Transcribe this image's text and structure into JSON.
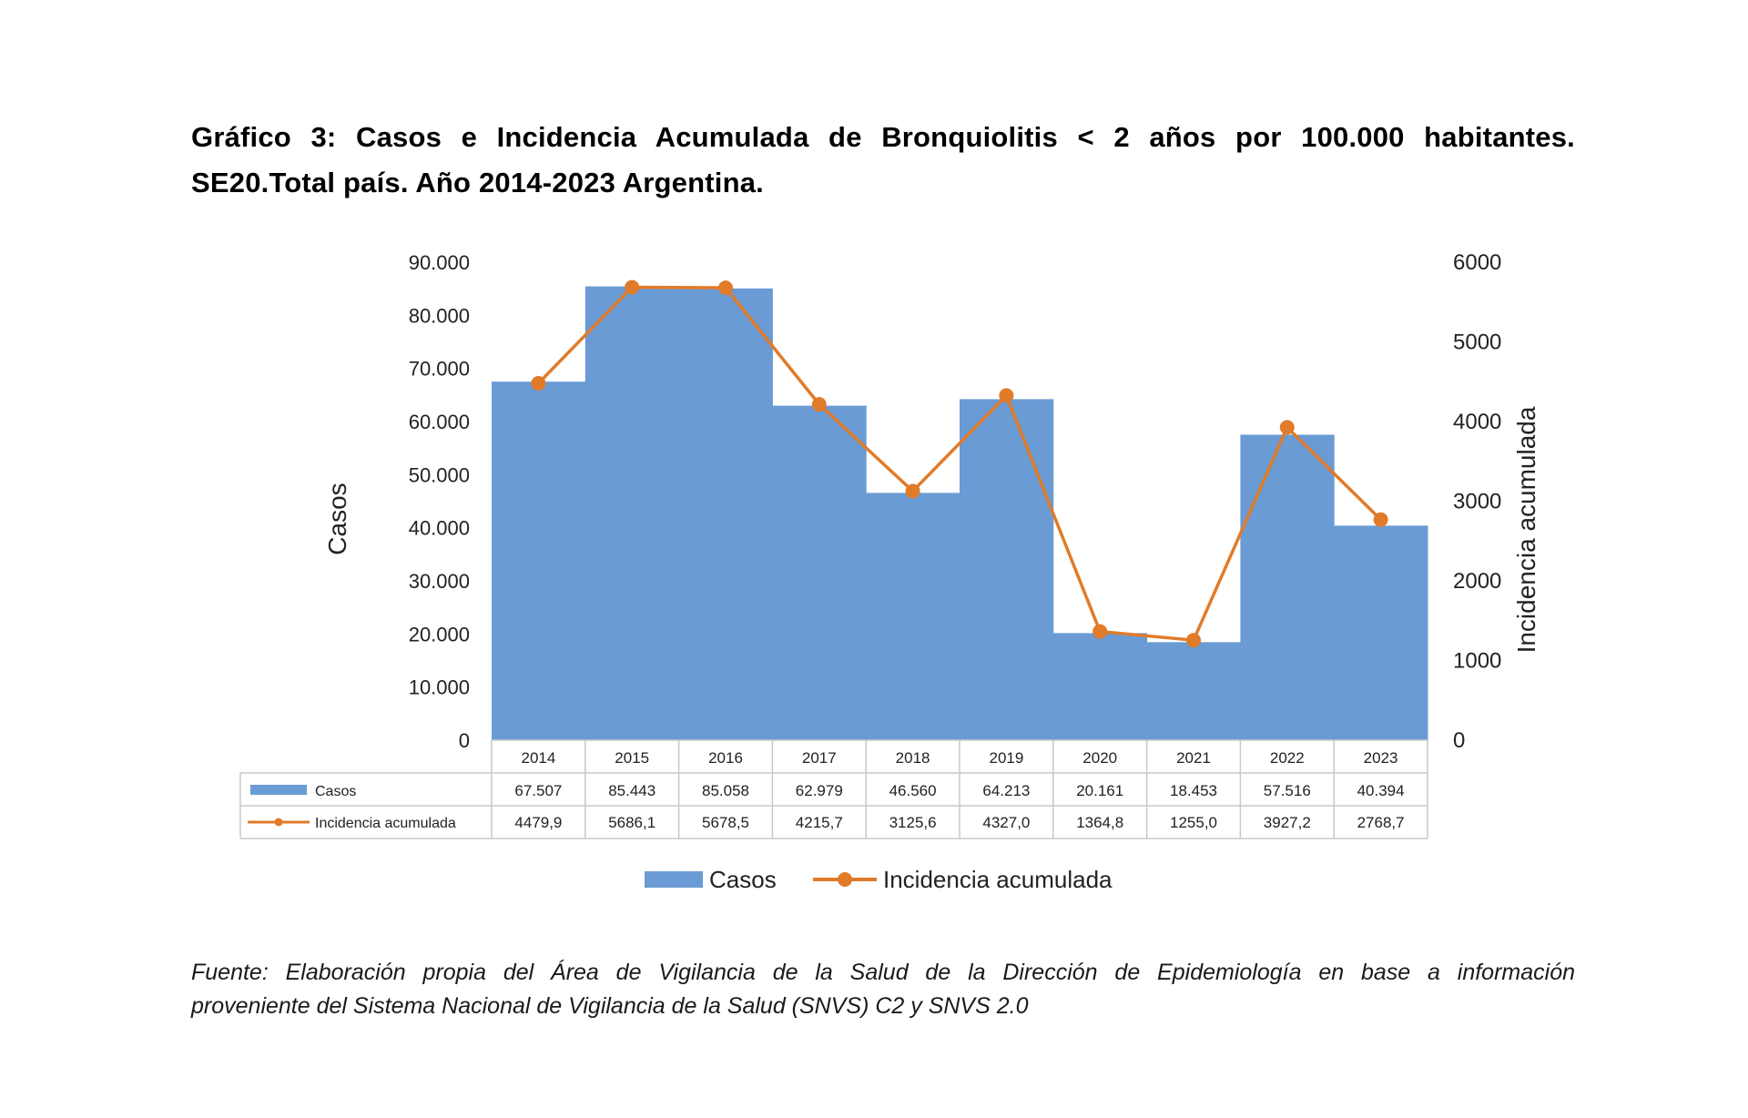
{
  "title_line1": "Gráfico 3: Casos e Incidencia Acumulada de Bronquiolitis < 2 años por 100.000 habitantes.",
  "title_line2": "SE20.Total país. Año 2014-2023 Argentina.",
  "source_line1": "Fuente: Elaboración propia del Área de Vigilancia de la Salud de la Dirección de Epidemiología en base a información",
  "source_line2": "proveniente del Sistema Nacional de Vigilancia de la Salud (SNVS) C2 y SNVS 2.0",
  "colors": {
    "bars": "#6a9bd4",
    "line": "#e07b2a",
    "grid": "#c8c8c8",
    "text": "#222222"
  },
  "chart_data": {
    "type": "bar",
    "title": "Gráfico 3: Casos e Incidencia Acumulada de Bronquiolitis < 2 años por 100.000 habitantes. SE20.Total país. Año 2014-2023 Argentina.",
    "categories": [
      "2014",
      "2015",
      "2016",
      "2017",
      "2018",
      "2019",
      "2020",
      "2021",
      "2022",
      "2023"
    ],
    "ylabel": "Casos",
    "y2label": "Incidencia acumulada",
    "ylim": [
      0,
      90000
    ],
    "y2lim": [
      0,
      6000
    ],
    "y_ticks": [
      "0",
      "10.000",
      "20.000",
      "30.000",
      "40.000",
      "50.000",
      "60.000",
      "70.000",
      "80.000",
      "90.000"
    ],
    "y2_ticks": [
      "0",
      "1000",
      "2000",
      "3000",
      "4000",
      "5000",
      "6000"
    ],
    "series": [
      {
        "name": "Casos",
        "type": "bar",
        "axis": "left",
        "values": [
          67507,
          85443,
          85058,
          62979,
          46560,
          64213,
          20161,
          18453,
          57516,
          40394
        ],
        "labels": [
          "67.507",
          "85.443",
          "85.058",
          "62.979",
          "46.560",
          "64.213",
          "20.161",
          "18.453",
          "57.516",
          "40.394"
        ]
      },
      {
        "name": "Incidencia acumulada",
        "type": "line",
        "axis": "right",
        "values": [
          4479.9,
          5686.1,
          5678.5,
          4215.7,
          3125.6,
          4327.0,
          1364.8,
          1255.0,
          3927.2,
          2768.7
        ],
        "labels": [
          "4479,9",
          "5686,1",
          "5678,5",
          "4215,7",
          "3125,6",
          "4327,0",
          "1364,8",
          "1255,0",
          "3927,2",
          "2768,7"
        ]
      }
    ],
    "legend": [
      "Casos",
      "Incidencia acumulada"
    ],
    "legend_position": "bottom"
  }
}
